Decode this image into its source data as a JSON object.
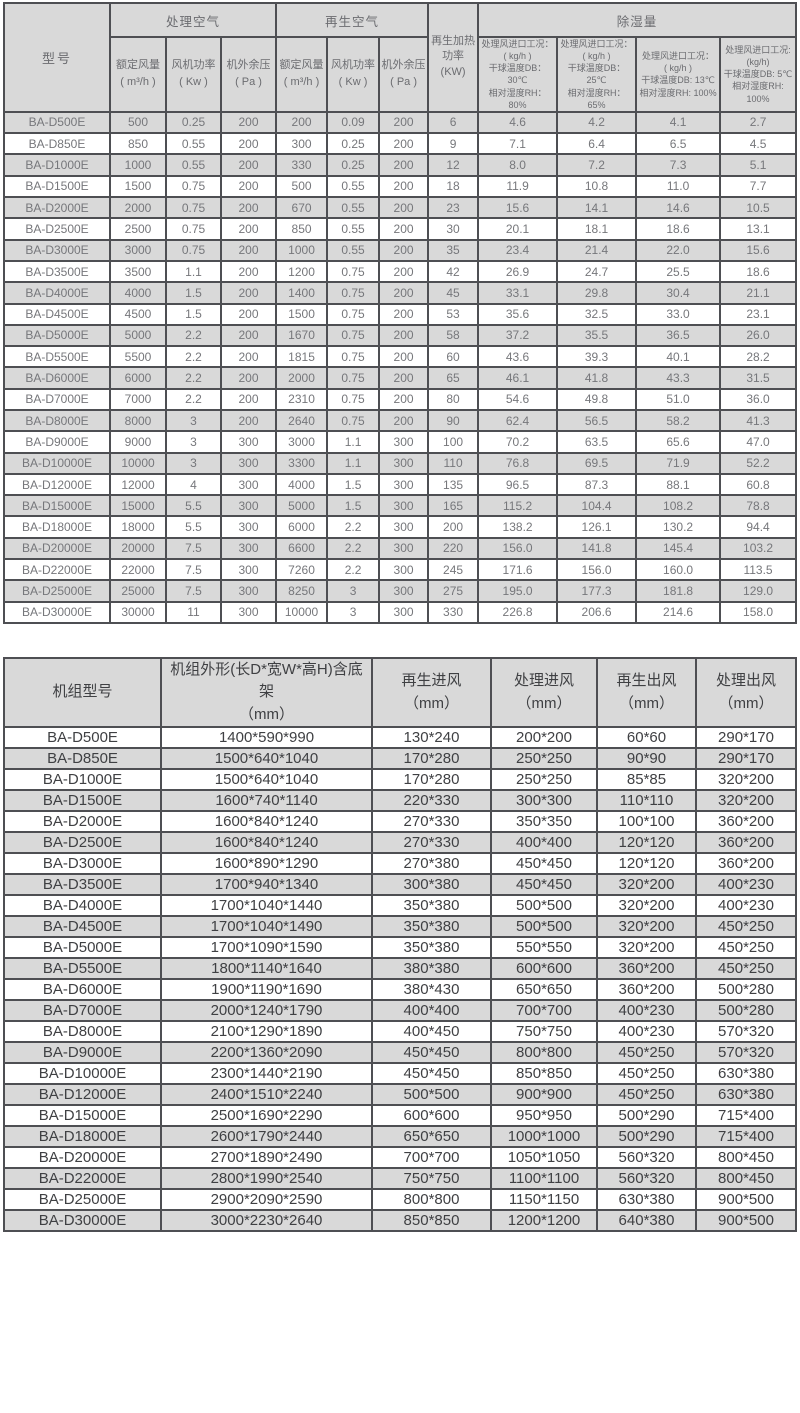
{
  "colors": {
    "row_stripe": "#d9d9d9",
    "header_bg": "#d9d9d9",
    "border": "#4e4f53",
    "table1_text": "#76777b",
    "table2_text": "#3f4043",
    "background": "#ffffff"
  },
  "performance_table": {
    "header": {
      "model": "型号",
      "process_air_group": "处理空气",
      "regen_air_group": "再生空气",
      "rated_airflow": "额定风量\n( m³/h )",
      "fan_power": "风机功率\n( Kw )",
      "external_pressure": "机外余压\n( Pa )",
      "regen_rated_airflow": "额定风量\n( m³/h )",
      "regen_fan_power": "风机功率\n( Kw )",
      "regen_external_pressure": "机外余压\n( Pa )",
      "regen_heater_power": "再生加热\n功率\n(KW)",
      "dehumidification_group": "除湿量",
      "condition_1": "处理风进口工况：\n( kg/h )\n干球温度DB：30℃\n相对湿度RH：80%",
      "condition_2": "处理风进口工况：\n( kg/h )\n干球温度DB：25℃\n相对湿度RH：65%",
      "condition_3": "处理风进口工况：\n( kg/h )\n干球温度DB: 13℃\n相对湿度RH: 100%",
      "condition_4": "处理风进口工况:\n(kg/h)\n干球温度DB: 5℃\n相对湿度RH: 100%"
    },
    "rows": [
      [
        "BA-D500E",
        "500",
        "0.25",
        "200",
        "200",
        "0.09",
        "200",
        "6",
        "4.6",
        "4.2",
        "4.1",
        "2.7"
      ],
      [
        "BA-D850E",
        "850",
        "0.55",
        "200",
        "300",
        "0.25",
        "200",
        "9",
        "7.1",
        "6.4",
        "6.5",
        "4.5"
      ],
      [
        "BA-D1000E",
        "1000",
        "0.55",
        "200",
        "330",
        "0.25",
        "200",
        "12",
        "8.0",
        "7.2",
        "7.3",
        "5.1"
      ],
      [
        "BA-D1500E",
        "1500",
        "0.75",
        "200",
        "500",
        "0.55",
        "200",
        "18",
        "11.9",
        "10.8",
        "11.0",
        "7.7"
      ],
      [
        "BA-D2000E",
        "2000",
        "0.75",
        "200",
        "670",
        "0.55",
        "200",
        "23",
        "15.6",
        "14.1",
        "14.6",
        "10.5"
      ],
      [
        "BA-D2500E",
        "2500",
        "0.75",
        "200",
        "850",
        "0.55",
        "200",
        "30",
        "20.1",
        "18.1",
        "18.6",
        "13.1"
      ],
      [
        "BA-D3000E",
        "3000",
        "0.75",
        "200",
        "1000",
        "0.55",
        "200",
        "35",
        "23.4",
        "21.4",
        "22.0",
        "15.6"
      ],
      [
        "BA-D3500E",
        "3500",
        "1.1",
        "200",
        "1200",
        "0.75",
        "200",
        "42",
        "26.9",
        "24.7",
        "25.5",
        "18.6"
      ],
      [
        "BA-D4000E",
        "4000",
        "1.5",
        "200",
        "1400",
        "0.75",
        "200",
        "45",
        "33.1",
        "29.8",
        "30.4",
        "21.1"
      ],
      [
        "BA-D4500E",
        "4500",
        "1.5",
        "200",
        "1500",
        "0.75",
        "200",
        "53",
        "35.6",
        "32.5",
        "33.0",
        "23.1"
      ],
      [
        "BA-D5000E",
        "5000",
        "2.2",
        "200",
        "1670",
        "0.75",
        "200",
        "58",
        "37.2",
        "35.5",
        "36.5",
        "26.0"
      ],
      [
        "BA-D5500E",
        "5500",
        "2.2",
        "200",
        "1815",
        "0.75",
        "200",
        "60",
        "43.6",
        "39.3",
        "40.1",
        "28.2"
      ],
      [
        "BA-D6000E",
        "6000",
        "2.2",
        "200",
        "2000",
        "0.75",
        "200",
        "65",
        "46.1",
        "41.8",
        "43.3",
        "31.5"
      ],
      [
        "BA-D7000E",
        "7000",
        "2.2",
        "200",
        "2310",
        "0.75",
        "200",
        "80",
        "54.6",
        "49.8",
        "51.0",
        "36.0"
      ],
      [
        "BA-D8000E",
        "8000",
        "3",
        "200",
        "2640",
        "0.75",
        "200",
        "90",
        "62.4",
        "56.5",
        "58.2",
        "41.3"
      ],
      [
        "BA-D9000E",
        "9000",
        "3",
        "300",
        "3000",
        "1.1",
        "300",
        "100",
        "70.2",
        "63.5",
        "65.6",
        "47.0"
      ],
      [
        "BA-D10000E",
        "10000",
        "3",
        "300",
        "3300",
        "1.1",
        "300",
        "110",
        "76.8",
        "69.5",
        "71.9",
        "52.2"
      ],
      [
        "BA-D12000E",
        "12000",
        "4",
        "300",
        "4000",
        "1.5",
        "300",
        "135",
        "96.5",
        "87.3",
        "88.1",
        "60.8"
      ],
      [
        "BA-D15000E",
        "15000",
        "5.5",
        "300",
        "5000",
        "1.5",
        "300",
        "165",
        "115.2",
        "104.4",
        "108.2",
        "78.8"
      ],
      [
        "BA-D18000E",
        "18000",
        "5.5",
        "300",
        "6000",
        "2.2",
        "300",
        "200",
        "138.2",
        "126.1",
        "130.2",
        "94.4"
      ],
      [
        "BA-D20000E",
        "20000",
        "7.5",
        "300",
        "6600",
        "2.2",
        "300",
        "220",
        "156.0",
        "141.8",
        "145.4",
        "103.2"
      ],
      [
        "BA-D22000E",
        "22000",
        "7.5",
        "300",
        "7260",
        "2.2",
        "300",
        "245",
        "171.6",
        "156.0",
        "160.0",
        "113.5"
      ],
      [
        "BA-D25000E",
        "25000",
        "7.5",
        "300",
        "8250",
        "3",
        "300",
        "275",
        "195.0",
        "177.3",
        "181.8",
        "129.0"
      ],
      [
        "BA-D30000E",
        "30000",
        "11",
        "300",
        "10000",
        "3",
        "300",
        "330",
        "226.8",
        "206.6",
        "214.6",
        "158.0"
      ]
    ]
  },
  "dimensions_table": {
    "header": {
      "model": "机组型号",
      "outline": "机组外形(长D*宽W*高H)含底架\n（mm）",
      "regen_inlet": "再生进风\n（mm）",
      "process_inlet": "处理进风\n（mm）",
      "regen_outlet": "再生出风\n（mm）",
      "process_outlet": "处理出风\n（mm）"
    },
    "rows": [
      [
        "BA-D500E",
        "1400*590*990",
        "130*240",
        "200*200",
        "60*60",
        "290*170"
      ],
      [
        "BA-D850E",
        "1500*640*1040",
        "170*280",
        "250*250",
        "90*90",
        "290*170"
      ],
      [
        "BA-D1000E",
        "1500*640*1040",
        "170*280",
        "250*250",
        "85*85",
        "320*200"
      ],
      [
        "BA-D1500E",
        "1600*740*1140",
        "220*330",
        "300*300",
        "110*110",
        "320*200"
      ],
      [
        "BA-D2000E",
        "1600*840*1240",
        "270*330",
        "350*350",
        "100*100",
        "360*200"
      ],
      [
        "BA-D2500E",
        "1600*840*1240",
        "270*330",
        "400*400",
        "120*120",
        "360*200"
      ],
      [
        "BA-D3000E",
        "1600*890*1290",
        "270*380",
        "450*450",
        "120*120",
        "360*200"
      ],
      [
        "BA-D3500E",
        "1700*940*1340",
        "300*380",
        "450*450",
        "320*200",
        "400*230"
      ],
      [
        "BA-D4000E",
        "1700*1040*1440",
        "350*380",
        "500*500",
        "320*200",
        "400*230"
      ],
      [
        "BA-D4500E",
        "1700*1040*1490",
        "350*380",
        "500*500",
        "320*200",
        "450*250"
      ],
      [
        "BA-D5000E",
        "1700*1090*1590",
        "350*380",
        "550*550",
        "320*200",
        "450*250"
      ],
      [
        "BA-D5500E",
        "1800*1140*1640",
        "380*380",
        "600*600",
        "360*200",
        "450*250"
      ],
      [
        "BA-D6000E",
        "1900*1190*1690",
        "380*430",
        "650*650",
        "360*200",
        "500*280"
      ],
      [
        "BA-D7000E",
        "2000*1240*1790",
        "400*400",
        "700*700",
        "400*230",
        "500*280"
      ],
      [
        "BA-D8000E",
        "2100*1290*1890",
        "400*450",
        "750*750",
        "400*230",
        "570*320"
      ],
      [
        "BA-D9000E",
        "2200*1360*2090",
        "450*450",
        "800*800",
        "450*250",
        "570*320"
      ],
      [
        "BA-D10000E",
        "2300*1440*2190",
        "450*450",
        "850*850",
        "450*250",
        "630*380"
      ],
      [
        "BA-D12000E",
        "2400*1510*2240",
        "500*500",
        "900*900",
        "450*250",
        "630*380"
      ],
      [
        "BA-D15000E",
        "2500*1690*2290",
        "600*600",
        "950*950",
        "500*290",
        "715*400"
      ],
      [
        "BA-D18000E",
        "2600*1790*2440",
        "650*650",
        "1000*1000",
        "500*290",
        "715*400"
      ],
      [
        "BA-D20000E",
        "2700*1890*2490",
        "700*700",
        "1050*1050",
        "560*320",
        "800*450"
      ],
      [
        "BA-D22000E",
        "2800*1990*2540",
        "750*750",
        "1100*1100",
        "560*320",
        "800*450"
      ],
      [
        "BA-D25000E",
        "2900*2090*2590",
        "800*800",
        "1150*1150",
        "630*380",
        "900*500"
      ],
      [
        "BA-D30000E",
        "3000*2230*2640",
        "850*850",
        "1200*1200",
        "640*380",
        "900*500"
      ]
    ]
  }
}
